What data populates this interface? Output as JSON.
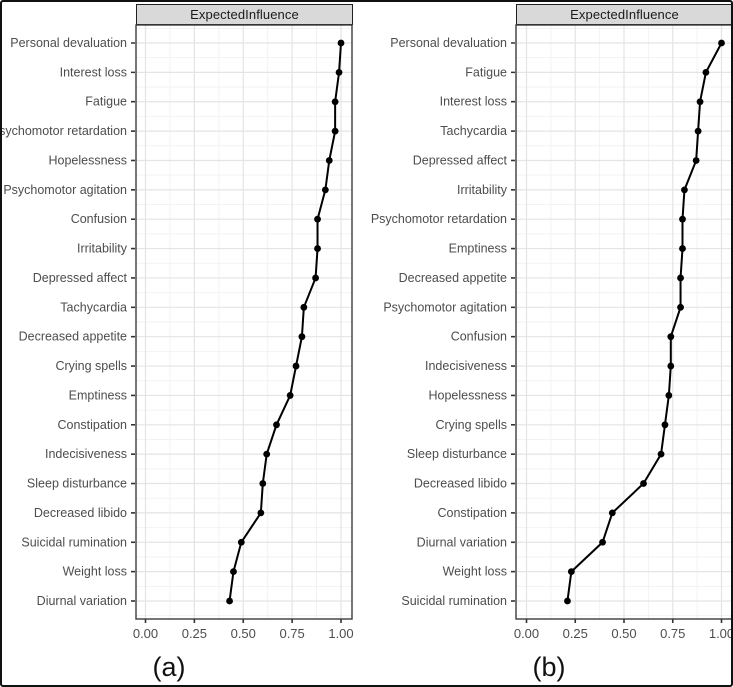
{
  "colors": {
    "point": "#000000",
    "line": "#000000",
    "strip_bg": "#d9d9d9",
    "strip_border": "#202020",
    "panel_border": "#3c3c3c",
    "grid_major": "#e4e4e4",
    "grid_minor": "#f2f2f2",
    "axis_text": "#4d4d4d",
    "tick_mark": "#333333",
    "figure_border": "#111111"
  },
  "chart_data": [
    {
      "type": "line",
      "panel_label": "(a)",
      "strip_title": "ExpectedInfluence",
      "orientation": "horizontal-dotline",
      "xlim": [
        0,
        1
      ],
      "x_ticks": [
        0,
        0.25,
        0.5,
        0.75,
        1
      ],
      "x_tick_labels": [
        "0.00",
        "0.25",
        "0.50",
        "0.75",
        "1.00"
      ],
      "grid": "major+minor",
      "legend": "none",
      "categories": [
        "Personal devaluation",
        "Interest loss",
        "Fatigue",
        "Psychomotor retardation",
        "Hopelessness",
        "Psychomotor agitation",
        "Confusion",
        "Irritability",
        "Depressed affect",
        "Tachycardia",
        "Decreased appetite",
        "Crying spells",
        "Emptiness",
        "Constipation",
        "Indecisiveness",
        "Sleep disturbance",
        "Decreased libido",
        "Suicidal rumination",
        "Weight loss",
        "Diurnal variation"
      ],
      "values": [
        1.0,
        0.99,
        0.97,
        0.97,
        0.94,
        0.92,
        0.88,
        0.88,
        0.87,
        0.81,
        0.8,
        0.77,
        0.74,
        0.67,
        0.62,
        0.6,
        0.59,
        0.49,
        0.45,
        0.43
      ]
    },
    {
      "type": "line",
      "panel_label": "(b)",
      "strip_title": "ExpectedInfluence",
      "orientation": "horizontal-dotline",
      "xlim": [
        0,
        1
      ],
      "x_ticks": [
        0,
        0.25,
        0.5,
        0.75,
        1
      ],
      "x_tick_labels": [
        "0.00",
        "0.25",
        "0.50",
        "0.75",
        "1.00"
      ],
      "grid": "major+minor",
      "legend": "none",
      "categories": [
        "Personal devaluation",
        "Fatigue",
        "Interest loss",
        "Tachycardia",
        "Depressed affect",
        "Irritability",
        "Psychomotor retardation",
        "Emptiness",
        "Decreased appetite",
        "Psychomotor agitation",
        "Confusion",
        "Indecisiveness",
        "Hopelessness",
        "Crying spells",
        "Sleep disturbance",
        "Decreased libido",
        "Constipation",
        "Diurnal variation",
        "Weight loss",
        "Suicidal rumination"
      ],
      "values": [
        1.0,
        0.92,
        0.89,
        0.88,
        0.87,
        0.81,
        0.8,
        0.8,
        0.79,
        0.79,
        0.74,
        0.74,
        0.73,
        0.71,
        0.69,
        0.6,
        0.44,
        0.39,
        0.23,
        0.21
      ]
    }
  ]
}
